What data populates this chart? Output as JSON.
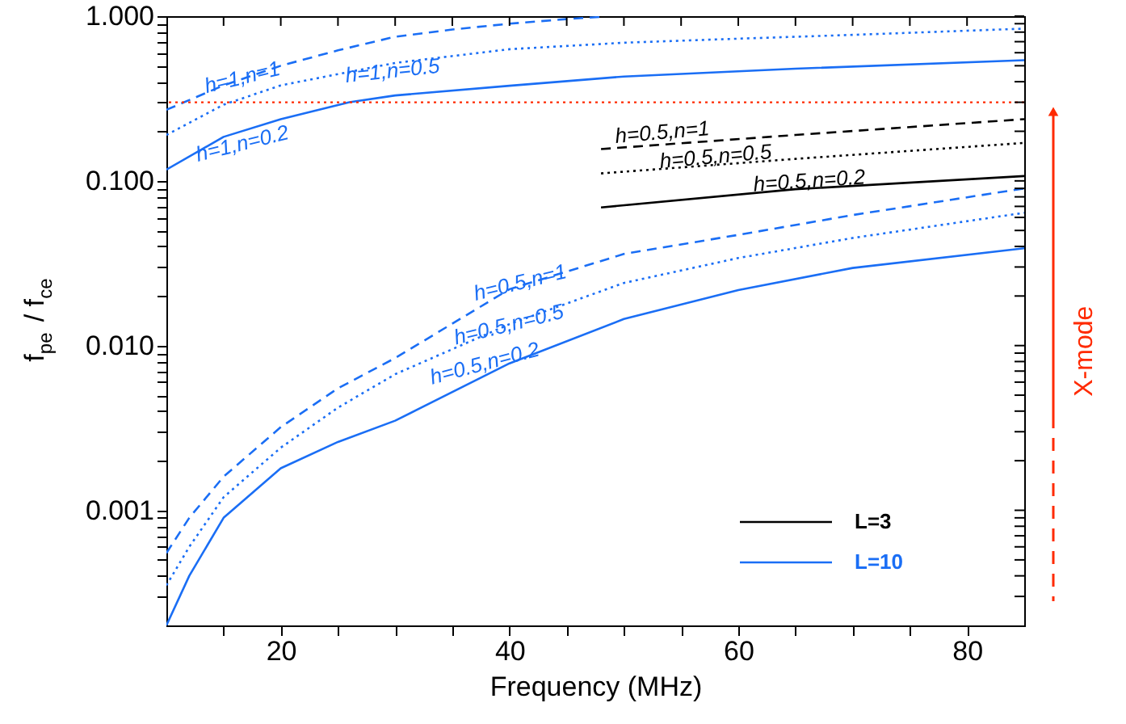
{
  "chart_data": {
    "type": "line",
    "xlabel": "Frequency (MHz)",
    "ylabel": "f$_{pe}$ / f$_{ce}$",
    "xlim": [
      10,
      85
    ],
    "ylim": [
      0.0002,
      1
    ],
    "xticks": [
      {
        "value": 15,
        "label": null
      },
      20,
      {
        "value": 25,
        "label": null
      },
      {
        "value": 30,
        "label": null
      },
      {
        "value": 35,
        "label": null
      },
      40,
      {
        "value": 45,
        "label": null
      },
      {
        "value": 50,
        "label": null
      },
      {
        "value": 55,
        "label": null
      },
      60,
      {
        "value": 65,
        "label": null
      },
      {
        "value": 70,
        "label": null
      },
      {
        "value": 75,
        "label": null
      },
      80
    ],
    "yticks": [
      {
        "value": 0.0003,
        "label": null
      },
      {
        "value": 0.0004,
        "label": null
      },
      {
        "value": 0.0005,
        "label": null
      },
      {
        "value": 0.0006,
        "label": null
      },
      {
        "value": 0.0007,
        "label": null
      },
      {
        "value": 0.0008,
        "label": null
      },
      {
        "value": 0.0009,
        "label": null
      },
      {
        "value": 0.001,
        "label": "0.001"
      },
      {
        "value": 0.002,
        "label": null
      },
      {
        "value": 0.003,
        "label": null
      },
      {
        "value": 0.004,
        "label": null
      },
      {
        "value": 0.005,
        "label": null
      },
      {
        "value": 0.006,
        "label": null
      },
      {
        "value": 0.007,
        "label": null
      },
      {
        "value": 0.008,
        "label": null
      },
      {
        "value": 0.009,
        "label": null
      },
      {
        "value": 0.01,
        "label": "0.010"
      },
      {
        "value": 0.02,
        "label": null
      },
      {
        "value": 0.03,
        "label": null
      },
      {
        "value": 0.04,
        "label": null
      },
      {
        "value": 0.05,
        "label": null
      },
      {
        "value": 0.06,
        "label": null
      },
      {
        "value": 0.07,
        "label": null
      },
      {
        "value": 0.08,
        "label": null
      },
      {
        "value": 0.09,
        "label": null
      },
      {
        "value": 0.1,
        "label": "0.100"
      },
      {
        "value": 0.2,
        "label": null
      },
      {
        "value": 0.3,
        "label": null
      },
      {
        "value": 0.4,
        "label": null
      },
      {
        "value": 0.5,
        "label": null
      },
      {
        "value": 0.6,
        "label": null
      },
      {
        "value": 0.7,
        "label": null
      },
      {
        "value": 0.8,
        "label": null
      },
      {
        "value": 0.9,
        "label": null
      },
      {
        "value": 1,
        "label": "1.000"
      }
    ],
    "log": "y",
    "grid": false,
    "legend": "bottom right",
    "series": [
      {
        "name": "L=3",
        "color": "#000000",
        "line_style": "dashed",
        "x": [
          48,
          65,
          85
        ],
        "values": [
          0.156,
          0.19,
          0.237
        ]
      },
      {
        "color": "#000000",
        "line_style": "dotted",
        "x": [
          48,
          65,
          85
        ],
        "values": [
          0.111,
          0.136,
          0.17
        ]
      },
      {
        "color": "#000000",
        "line_style": "solid",
        "x": [
          48,
          65,
          85
        ],
        "values": [
          0.069,
          0.089,
          0.107
        ]
      },
      {
        "name": "L=10",
        "color": "#1a6ef5",
        "line_style": "dashed",
        "x": [
          10,
          15,
          20,
          25,
          30,
          35,
          40,
          45,
          48
        ],
        "values": [
          0.27,
          0.38,
          0.5,
          0.62,
          0.75,
          0.83,
          0.9,
          0.96,
          0.99
        ]
      },
      {
        "color": "#1a6ef5",
        "line_style": "dotted",
        "x": [
          10,
          15,
          20,
          30,
          40,
          50,
          60,
          70,
          85
        ],
        "values": [
          0.19,
          0.29,
          0.38,
          0.52,
          0.63,
          0.69,
          0.73,
          0.77,
          0.84
        ]
      },
      {
        "color": "#1a6ef5",
        "line_style": "solid",
        "x": [
          10,
          15,
          20,
          26,
          30,
          40,
          50,
          65,
          85
        ],
        "values": [
          0.117,
          0.185,
          0.237,
          0.3,
          0.33,
          0.378,
          0.43,
          0.48,
          0.54
        ]
      },
      {
        "color": "#1a6ef5",
        "line_style": "dashed",
        "x": [
          10,
          12,
          15,
          20,
          25,
          30,
          40,
          50,
          60,
          70,
          85
        ],
        "values": [
          0.00055,
          0.0009,
          0.0016,
          0.0032,
          0.0055,
          0.0084,
          0.022,
          0.036,
          0.047,
          0.062,
          0.09
        ]
      },
      {
        "color": "#1a6ef5",
        "line_style": "dotted",
        "x": [
          10,
          12,
          15,
          20,
          25,
          30,
          40,
          50,
          60,
          70,
          85
        ],
        "values": [
          0.00035,
          0.0006,
          0.0012,
          0.0024,
          0.0042,
          0.0067,
          0.0135,
          0.024,
          0.034,
          0.045,
          0.064
        ]
      },
      {
        "color": "#1a6ef5",
        "line_style": "solid",
        "x": [
          10,
          12,
          15,
          20,
          25,
          30,
          40,
          50,
          60,
          70,
          85
        ],
        "values": [
          0.0002,
          0.0004,
          0.0009,
          0.0018,
          0.0026,
          0.0035,
          0.0078,
          0.0145,
          0.0217,
          0.0296,
          0.039
        ]
      }
    ],
    "ref_lines": [
      {
        "axis": "y",
        "value": 0.3,
        "color": "#ff2a00",
        "line_style": "dotted"
      }
    ],
    "annotations": [
      "h=0.5,n=1",
      "h=0.5,n=0.5",
      "h=0.5,n=0.2",
      "h=1,n=1",
      "h=1,n=0.5",
      "h=1,n=0.2",
      "h=0.5,n=1",
      "h=0.5,n=0.5",
      "h=0.5,n=0.2",
      "X-mode"
    ]
  }
}
